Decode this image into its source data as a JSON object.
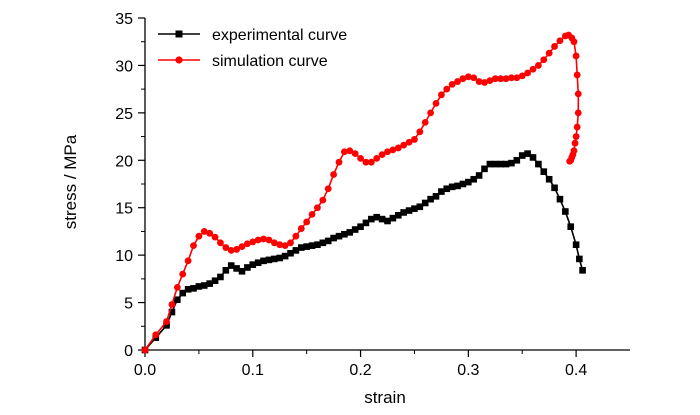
{
  "chart_data": {
    "type": "line",
    "title": "",
    "xlabel": "strain",
    "ylabel": "stress / MPa",
    "xlim": [
      0.0,
      0.45
    ],
    "ylim": [
      0,
      35
    ],
    "xticks": [
      0.0,
      0.1,
      0.2,
      0.3,
      0.4
    ],
    "xtick_labels": [
      "0.0",
      "0.1",
      "0.2",
      "0.3",
      "0.4"
    ],
    "yticks": [
      0,
      5,
      10,
      15,
      20,
      25,
      30,
      35
    ],
    "ytick_labels": [
      "0",
      "5",
      "10",
      "15",
      "20",
      "25",
      "30",
      "35"
    ],
    "grid": false,
    "legend_position": "top-left",
    "series": [
      {
        "name": "experimental curve",
        "color": "#000000",
        "marker": "square",
        "x": [
          0.0,
          0.01,
          0.02,
          0.025,
          0.03,
          0.035,
          0.04,
          0.045,
          0.05,
          0.055,
          0.06,
          0.065,
          0.07,
          0.075,
          0.08,
          0.085,
          0.09,
          0.095,
          0.1,
          0.105,
          0.11,
          0.115,
          0.12,
          0.125,
          0.13,
          0.135,
          0.14,
          0.145,
          0.15,
          0.155,
          0.16,
          0.165,
          0.17,
          0.175,
          0.18,
          0.185,
          0.19,
          0.195,
          0.2,
          0.205,
          0.21,
          0.215,
          0.22,
          0.225,
          0.23,
          0.235,
          0.24,
          0.245,
          0.25,
          0.255,
          0.26,
          0.265,
          0.27,
          0.275,
          0.28,
          0.285,
          0.29,
          0.295,
          0.3,
          0.305,
          0.31,
          0.315,
          0.32,
          0.325,
          0.33,
          0.335,
          0.34,
          0.345,
          0.35,
          0.355,
          0.36,
          0.365,
          0.37,
          0.375,
          0.38,
          0.385,
          0.39,
          0.395,
          0.4,
          0.403,
          0.406
        ],
        "y": [
          0.0,
          1.3,
          2.6,
          4.0,
          5.3,
          6.0,
          6.4,
          6.5,
          6.7,
          6.8,
          7.0,
          7.3,
          7.7,
          8.4,
          8.9,
          8.6,
          8.3,
          8.7,
          9.0,
          9.2,
          9.4,
          9.5,
          9.6,
          9.7,
          9.9,
          10.2,
          10.5,
          10.8,
          10.9,
          11.0,
          11.1,
          11.3,
          11.5,
          11.8,
          12.0,
          12.2,
          12.4,
          12.7,
          13.0,
          13.4,
          13.8,
          14.0,
          13.8,
          13.6,
          13.9,
          14.2,
          14.5,
          14.7,
          14.9,
          15.1,
          15.5,
          15.9,
          16.2,
          16.7,
          17.0,
          17.2,
          17.3,
          17.5,
          17.7,
          18.0,
          18.4,
          19.1,
          19.6,
          19.6,
          19.6,
          19.6,
          19.7,
          20.0,
          20.5,
          20.7,
          20.3,
          19.6,
          18.8,
          18.0,
          17.1,
          15.9,
          14.6,
          13.0,
          11.1,
          9.6,
          8.4
        ]
      },
      {
        "name": "simulation curve",
        "color": "#ff0000",
        "marker": "circle",
        "x": [
          0.0,
          0.01,
          0.02,
          0.025,
          0.03,
          0.035,
          0.04,
          0.045,
          0.05,
          0.055,
          0.06,
          0.065,
          0.07,
          0.075,
          0.08,
          0.085,
          0.09,
          0.095,
          0.1,
          0.105,
          0.11,
          0.115,
          0.12,
          0.125,
          0.13,
          0.135,
          0.14,
          0.145,
          0.15,
          0.155,
          0.16,
          0.165,
          0.17,
          0.175,
          0.18,
          0.185,
          0.19,
          0.195,
          0.2,
          0.205,
          0.21,
          0.215,
          0.22,
          0.225,
          0.23,
          0.235,
          0.24,
          0.245,
          0.25,
          0.255,
          0.26,
          0.265,
          0.27,
          0.275,
          0.28,
          0.285,
          0.29,
          0.295,
          0.3,
          0.305,
          0.31,
          0.315,
          0.32,
          0.325,
          0.33,
          0.335,
          0.34,
          0.345,
          0.35,
          0.355,
          0.36,
          0.365,
          0.37,
          0.375,
          0.38,
          0.385,
          0.39,
          0.393,
          0.396,
          0.398,
          0.4,
          0.401,
          0.402,
          0.402,
          0.401,
          0.4,
          0.399,
          0.398,
          0.397,
          0.396,
          0.395,
          0.394
        ],
        "y": [
          0.0,
          1.6,
          3.0,
          4.8,
          6.6,
          8.0,
          9.4,
          11.0,
          12.0,
          12.5,
          12.3,
          11.9,
          11.3,
          10.8,
          10.5,
          10.6,
          10.9,
          11.2,
          11.4,
          11.6,
          11.7,
          11.6,
          11.3,
          11.1,
          11.0,
          11.3,
          12.0,
          12.8,
          13.5,
          14.3,
          15.0,
          15.8,
          17.0,
          18.5,
          19.8,
          20.9,
          21.0,
          20.7,
          20.2,
          19.8,
          19.8,
          20.2,
          20.6,
          20.9,
          21.1,
          21.3,
          21.6,
          21.9,
          22.2,
          23.0,
          24.0,
          25.0,
          26.0,
          26.9,
          27.5,
          28.0,
          28.3,
          28.6,
          28.8,
          28.7,
          28.3,
          28.2,
          28.4,
          28.6,
          28.6,
          28.6,
          28.7,
          28.7,
          28.9,
          29.2,
          29.6,
          30.0,
          30.6,
          31.3,
          32.0,
          32.6,
          33.1,
          33.2,
          32.9,
          32.5,
          31.0,
          29.0,
          27.0,
          25.0,
          23.5,
          22.5,
          21.8,
          21.0,
          20.6,
          20.3,
          20.0,
          19.9
        ]
      }
    ]
  }
}
